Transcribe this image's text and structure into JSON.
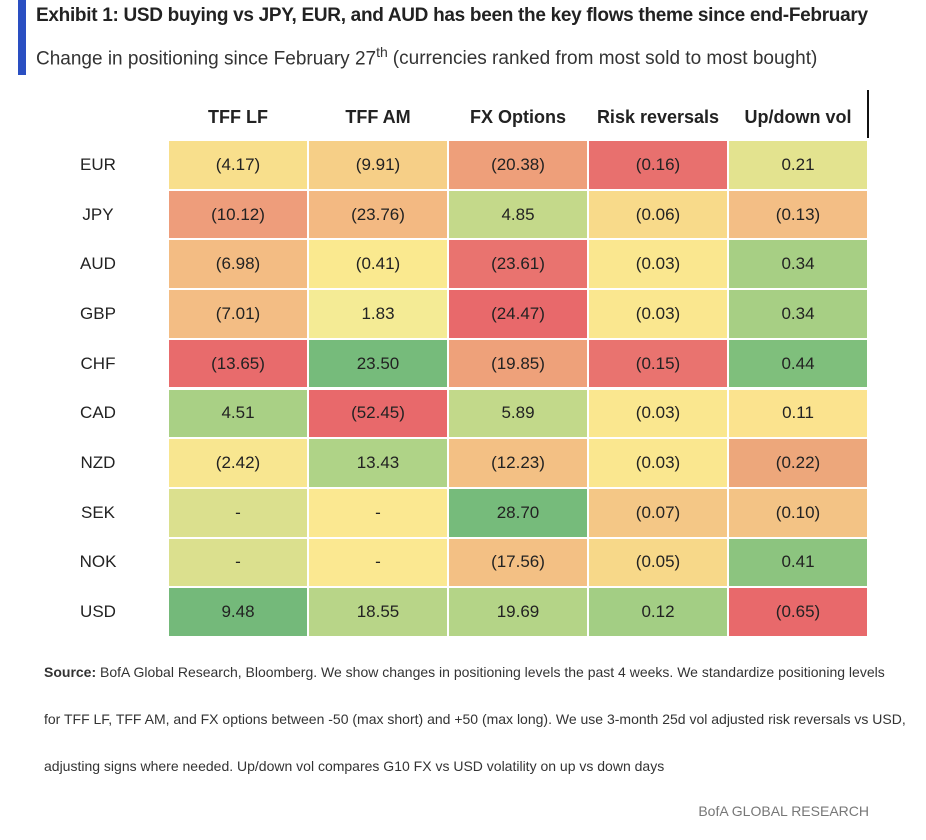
{
  "header": {
    "title": "Exhibit 1: USD buying vs JPY, EUR, and AUD has been the key flows theme since end-February",
    "subtitle": {
      "text": "Change in positioning since February 27",
      "superscript": "th",
      "rest": "(currencies ranked from most sold to most bought)"
    }
  },
  "table": {
    "columns": [
      "TFF LF",
      "TFF AM",
      "FX Options",
      "Risk reversals",
      "Up/down vol"
    ],
    "rows": [
      {
        "label": "EUR",
        "cells": [
          "(4.17)",
          "(9.91)",
          "(20.38)",
          "(0.16)",
          "0.21"
        ],
        "colors": [
          "#f8df8c",
          "#f6cf87",
          "#ee9f7a",
          "#e8706e",
          "#e3e38f"
        ]
      },
      {
        "label": "JPY",
        "cells": [
          "(10.12)",
          "(23.76)",
          "4.85",
          "(0.06)",
          "(0.13)"
        ],
        "colors": [
          "#ee9d7b",
          "#f3b982",
          "#c4d98a",
          "#f8da8a",
          "#f3be85"
        ]
      },
      {
        "label": "AUD",
        "cells": [
          "(6.98)",
          "(0.41)",
          "(23.61)",
          "(0.03)",
          "0.34"
        ],
        "colors": [
          "#f3bc83",
          "#fae98f",
          "#e9736f",
          "#fae78f",
          "#a7cf84"
        ]
      },
      {
        "label": "GBP",
        "cells": [
          "(7.01)",
          "1.83",
          "(24.47)",
          "(0.03)",
          "0.34"
        ],
        "colors": [
          "#f3bd84",
          "#f4eb95",
          "#e8696b",
          "#fae78f",
          "#a7cf84"
        ]
      },
      {
        "label": "CHF",
        "cells": [
          "(13.65)",
          "23.50",
          "(19.85)",
          "(0.15)",
          "0.44"
        ],
        "colors": [
          "#e86b6c",
          "#76bb7b",
          "#eea17a",
          "#e9736f",
          "#7fbf7c"
        ]
      },
      {
        "label": "CAD",
        "cells": [
          "4.51",
          "(52.45)",
          "5.89",
          "(0.03)",
          "0.11"
        ],
        "colors": [
          "#a9d085",
          "#e8696b",
          "#c2d98a",
          "#fae78f",
          "#fbe38e"
        ]
      },
      {
        "label": "NZD",
        "cells": [
          "(2.42)",
          "13.43",
          "(12.23)",
          "(0.03)",
          "(0.22)"
        ],
        "colors": [
          "#f8e690",
          "#afd387",
          "#f3c084",
          "#fae78f",
          "#eda77b"
        ]
      },
      {
        "label": "SEK",
        "cells": [
          "-",
          "-",
          "28.70",
          "(0.07)",
          "(0.10)"
        ],
        "colors": [
          "#dbe08e",
          "#fbe891",
          "#76bb7b",
          "#f4c786",
          "#f3c385"
        ]
      },
      {
        "label": "NOK",
        "cells": [
          "-",
          "-",
          "(17.56)",
          "(0.05)",
          "0.41"
        ],
        "colors": [
          "#dbe08e",
          "#fbe891",
          "#f3c084",
          "#f7d889",
          "#8cc47f"
        ]
      },
      {
        "label": "USD",
        "cells": [
          "9.48",
          "18.55",
          "19.69",
          "0.12",
          "(0.65)"
        ],
        "colors": [
          "#74b97a",
          "#b8d588",
          "#b4d487",
          "#a3ce84",
          "#e8696b"
        ]
      }
    ]
  },
  "source": {
    "label": "Source:",
    "lines": [
      "BofA Global Research, Bloomberg. We show changes in positioning levels the past 4 weeks. We standardize positioning levels",
      "for TFF LF, TFF AM, and FX options between -50 (max short) and +50 (max long). We use 3-month 25d vol adjusted risk reversals vs USD,",
      "adjusting signs where needed. Up/down vol compares G10 FX vs USD volatility on up vs down days"
    ]
  },
  "footer": "BofA GLOBAL RESEARCH"
}
